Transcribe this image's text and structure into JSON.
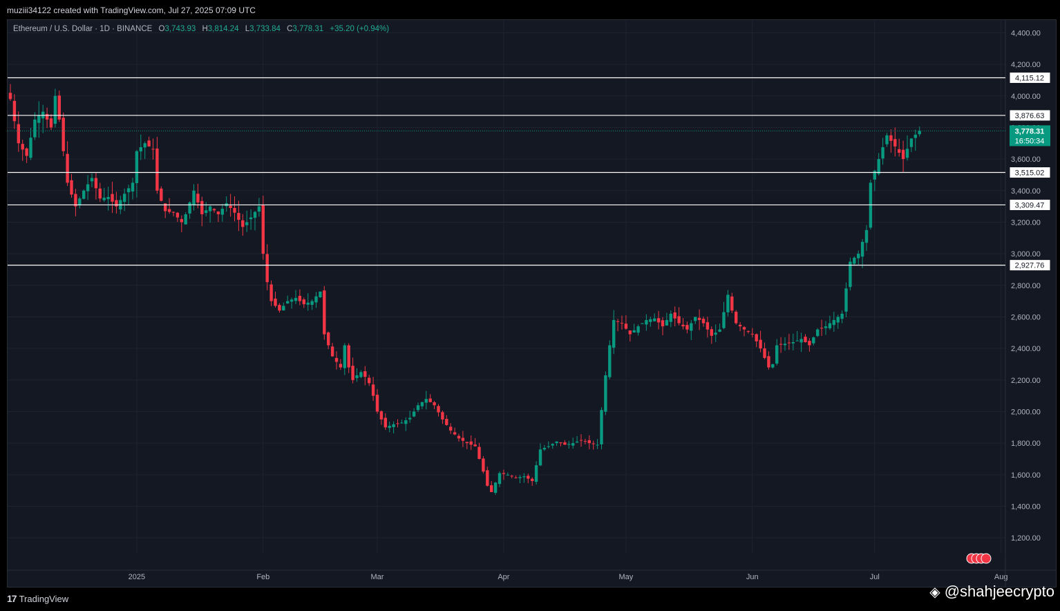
{
  "header": {
    "created_by": "muziii34122 created with TradingView.com, Jul 27, 2025 07:09 UTC"
  },
  "legend": {
    "symbol": "Ethereum / U.S. Dollar · 1D · BINANCE",
    "o_label": "O",
    "o_value": "3,743.93",
    "h_label": "H",
    "h_value": "3,814.24",
    "l_label": "L",
    "l_value": "3,733.84",
    "c_label": "C",
    "c_value": "3,778.31",
    "change": "+35.20 (+0.94%)"
  },
  "footer": {
    "brand": "TradingView",
    "watermark": "@shahjeecrypto"
  },
  "colors": {
    "up": "#089981",
    "down": "#f23645",
    "background": "#141823",
    "grid": "#1f2330",
    "level_line": "#ffffff",
    "price_badge": "#089981"
  },
  "chart_data": {
    "type": "candlestick",
    "ylim": [
      1100,
      4450
    ],
    "y_ticks": [
      "1,200.00",
      "1,400.00",
      "1,600.00",
      "1,800.00",
      "2,000.00",
      "2,200.00",
      "2,400.00",
      "2,600.00",
      "2,800.00",
      "3,000.00",
      "3,200.00",
      "3,400.00",
      "3,600.00",
      "3,800.00",
      "4,000.00",
      "4,200.00",
      "4,400.00"
    ],
    "x_ticks": [
      {
        "label": "2025",
        "day": 31
      },
      {
        "label": "Feb",
        "day": 62
      },
      {
        "label": "Mar",
        "day": 90
      },
      {
        "label": "Apr",
        "day": 121
      },
      {
        "label": "May",
        "day": 151
      },
      {
        "label": "Jun",
        "day": 182
      },
      {
        "label": "Jul",
        "day": 212
      },
      {
        "label": "Aug",
        "day": 243
      }
    ],
    "levels": [
      {
        "value": 4115.12,
        "label": "4,115.12"
      },
      {
        "value": 3876.63,
        "label": "3,876.63"
      },
      {
        "value": 3515.02,
        "label": "3,515.02"
      },
      {
        "value": 3309.47,
        "label": "3,309.47"
      },
      {
        "value": 2927.76,
        "label": "2,927.76"
      }
    ],
    "last_price": {
      "value": 3778.31,
      "label": "3,778.31",
      "countdown": "16:50:34"
    },
    "close_path": [
      [
        0,
        3980
      ],
      [
        2,
        3700
      ],
      [
        4,
        3620
      ],
      [
        6,
        3850
      ],
      [
        8,
        3900
      ],
      [
        10,
        3800
      ],
      [
        11,
        4000
      ],
      [
        12,
        3850
      ],
      [
        13,
        3650
      ],
      [
        14,
        3450
      ],
      [
        16,
        3300
      ],
      [
        18,
        3400
      ],
      [
        20,
        3480
      ],
      [
        22,
        3350
      ],
      [
        24,
        3360
      ],
      [
        26,
        3300
      ],
      [
        28,
        3380
      ],
      [
        30,
        3450
      ],
      [
        31,
        3650
      ],
      [
        33,
        3700
      ],
      [
        35,
        3660
      ],
      [
        36,
        3400
      ],
      [
        38,
        3270
      ],
      [
        40,
        3260
      ],
      [
        42,
        3200
      ],
      [
        43,
        3250
      ],
      [
        45,
        3400
      ],
      [
        47,
        3250
      ],
      [
        49,
        3300
      ],
      [
        51,
        3250
      ],
      [
        53,
        3320
      ],
      [
        55,
        3260
      ],
      [
        57,
        3170
      ],
      [
        59,
        3230
      ],
      [
        61,
        3300
      ],
      [
        62,
        3000
      ],
      [
        63,
        2820
      ],
      [
        64,
        2700
      ],
      [
        66,
        2640
      ],
      [
        68,
        2700
      ],
      [
        70,
        2720
      ],
      [
        72,
        2680
      ],
      [
        74,
        2700
      ],
      [
        76,
        2760
      ],
      [
        77,
        2490
      ],
      [
        79,
        2350
      ],
      [
        81,
        2280
      ],
      [
        82,
        2420
      ],
      [
        83,
        2280
      ],
      [
        84,
        2200
      ],
      [
        85,
        2230
      ],
      [
        86,
        2250
      ],
      [
        87,
        2220
      ],
      [
        88,
        2180
      ],
      [
        89,
        2100
      ],
      [
        90,
        2000
      ],
      [
        92,
        1900
      ],
      [
        94,
        1920
      ],
      [
        96,
        1930
      ],
      [
        98,
        1960
      ],
      [
        100,
        2040
      ],
      [
        102,
        2080
      ],
      [
        104,
        2040
      ],
      [
        106,
        1950
      ],
      [
        108,
        1880
      ],
      [
        110,
        1830
      ],
      [
        112,
        1800
      ],
      [
        114,
        1780
      ],
      [
        116,
        1620
      ],
      [
        117,
        1530
      ],
      [
        118,
        1490
      ],
      [
        120,
        1610
      ],
      [
        122,
        1600
      ],
      [
        124,
        1580
      ],
      [
        126,
        1590
      ],
      [
        128,
        1560
      ],
      [
        130,
        1760
      ],
      [
        132,
        1780
      ],
      [
        134,
        1810
      ],
      [
        136,
        1790
      ],
      [
        138,
        1800
      ],
      [
        140,
        1820
      ],
      [
        142,
        1800
      ],
      [
        144,
        1790
      ],
      [
        146,
        2230
      ],
      [
        147,
        2420
      ],
      [
        148,
        2580
      ],
      [
        150,
        2560
      ],
      [
        152,
        2490
      ],
      [
        154,
        2540
      ],
      [
        156,
        2580
      ],
      [
        158,
        2590
      ],
      [
        160,
        2540
      ],
      [
        162,
        2620
      ],
      [
        164,
        2560
      ],
      [
        166,
        2520
      ],
      [
        168,
        2600
      ],
      [
        170,
        2560
      ],
      [
        172,
        2480
      ],
      [
        174,
        2520
      ],
      [
        176,
        2740
      ],
      [
        177,
        2640
      ],
      [
        178,
        2560
      ],
      [
        180,
        2520
      ],
      [
        182,
        2490
      ],
      [
        184,
        2400
      ],
      [
        186,
        2280
      ],
      [
        187,
        2300
      ],
      [
        188,
        2420
      ],
      [
        190,
        2430
      ],
      [
        192,
        2440
      ],
      [
        194,
        2460
      ],
      [
        196,
        2420
      ],
      [
        198,
        2520
      ],
      [
        200,
        2540
      ],
      [
        202,
        2580
      ],
      [
        204,
        2620
      ],
      [
        205,
        2780
      ],
      [
        206,
        2950
      ],
      [
        208,
        3000
      ],
      [
        210,
        3150
      ],
      [
        211,
        3450
      ],
      [
        213,
        3600
      ],
      [
        215,
        3750
      ],
      [
        217,
        3680
      ],
      [
        219,
        3600
      ],
      [
        221,
        3730
      ],
      [
        223,
        3778.31
      ]
    ]
  }
}
